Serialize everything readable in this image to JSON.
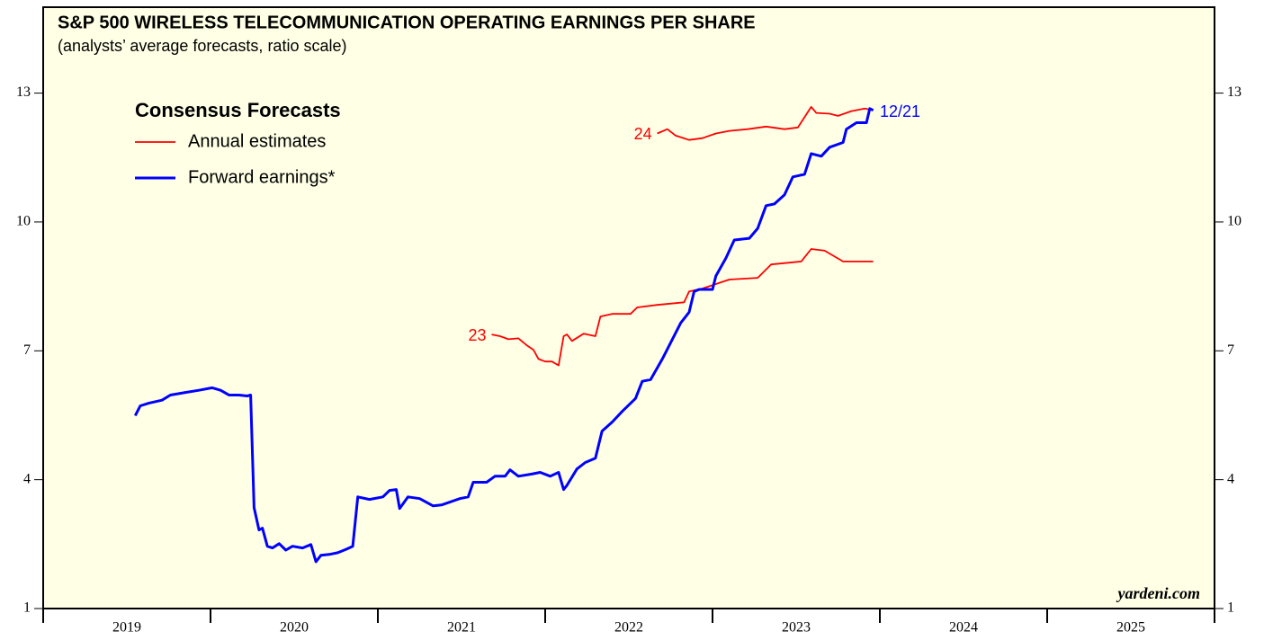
{
  "chart_data": {
    "type": "line",
    "title": "S&P 500 WIRELESS TELECOMMUNICATION OPERATING EARNINGS PER SHARE",
    "subtitle": "(analysts’ average forecasts, ratio scale)",
    "legend_title": "Consensus Forecasts",
    "annotations": {
      "date": "12/21",
      "source": "yardeni.com"
    },
    "xlim": [
      2019,
      2026
    ],
    "xticks": [
      2019,
      2020,
      2021,
      2022,
      2023,
      2024,
      2025,
      2026
    ],
    "ylim": [
      1,
      15
    ],
    "yticks": [
      1,
      4,
      7,
      10,
      13
    ],
    "series": [
      {
        "name": "Annual estimates",
        "label": "23",
        "color": "#ff0000",
        "x": [
          2021.68,
          2021.73,
          2021.78,
          2021.84,
          2021.89,
          2021.93,
          2021.96,
          2022.0,
          2022.04,
          2022.08,
          2022.11,
          2022.13,
          2022.16,
          2022.23,
          2022.3,
          2022.33,
          2022.4,
          2022.51,
          2022.55,
          2022.67,
          2022.83,
          2022.86,
          2022.94,
          2023.1,
          2023.27,
          2023.35,
          2023.53,
          2023.59,
          2023.67,
          2023.78,
          2023.86,
          2023.96
        ],
        "values": [
          7.38,
          7.34,
          7.27,
          7.29,
          7.13,
          7.02,
          6.81,
          6.75,
          6.75,
          6.66,
          7.34,
          7.38,
          7.23,
          7.4,
          7.34,
          7.8,
          7.86,
          7.86,
          8.01,
          8.07,
          8.13,
          8.38,
          8.45,
          8.66,
          8.7,
          9.01,
          9.08,
          9.37,
          9.33,
          9.08,
          9.08,
          9.08
        ]
      },
      {
        "label": "24",
        "color": "#ff0000",
        "x": [
          2022.67,
          2022.73,
          2022.78,
          2022.86,
          2022.94,
          2023.02,
          2023.1,
          2023.21,
          2023.32,
          2023.43,
          2023.51,
          2023.59,
          2023.62,
          2023.7,
          2023.75,
          2023.83,
          2023.91,
          2023.96
        ],
        "values": [
          12.06,
          12.16,
          12.01,
          11.91,
          11.95,
          12.06,
          12.12,
          12.16,
          12.22,
          12.16,
          12.2,
          12.68,
          12.54,
          12.52,
          12.47,
          12.58,
          12.64,
          12.6
        ]
      },
      {
        "name": "Forward earnings*",
        "color": "#0000ff",
        "x": [
          2019.55,
          2019.58,
          2019.63,
          2019.71,
          2019.76,
          2019.85,
          2019.93,
          2020.01,
          2020.06,
          2020.11,
          2020.17,
          2020.22,
          2020.24,
          2020.26,
          2020.29,
          2020.31,
          2020.34,
          2020.37,
          2020.41,
          2020.45,
          2020.49,
          2020.55,
          2020.6,
          2020.63,
          2020.66,
          2020.71,
          2020.76,
          2020.81,
          2020.85,
          2020.88,
          2020.95,
          2021.03,
          2021.07,
          2021.11,
          2021.13,
          2021.18,
          2021.25,
          2021.33,
          2021.38,
          2021.49,
          2021.54,
          2021.57,
          2021.65,
          2021.7,
          2021.76,
          2021.79,
          2021.84,
          2021.92,
          2021.97,
          2022.03,
          2022.08,
          2022.11,
          2022.13,
          2022.19,
          2022.24,
          2022.3,
          2022.34,
          2022.4,
          2022.46,
          2022.54,
          2022.58,
          2022.63,
          2022.7,
          2022.75,
          2022.81,
          2022.86,
          2022.89,
          2022.92,
          2023.0,
          2023.02,
          2023.08,
          2023.13,
          2023.22,
          2023.27,
          2023.32,
          2023.37,
          2023.43,
          2023.48,
          2023.55,
          2023.59,
          2023.65,
          2023.7,
          2023.78,
          2023.8,
          2023.86,
          2023.92,
          2023.94,
          2023.96
        ],
        "values": [
          5.49,
          5.72,
          5.78,
          5.85,
          5.97,
          6.03,
          6.08,
          6.14,
          6.08,
          5.97,
          5.97,
          5.95,
          5.97,
          3.35,
          2.83,
          2.87,
          2.45,
          2.41,
          2.51,
          2.36,
          2.45,
          2.41,
          2.49,
          2.09,
          2.24,
          2.26,
          2.3,
          2.38,
          2.45,
          3.6,
          3.54,
          3.6,
          3.75,
          3.77,
          3.33,
          3.6,
          3.56,
          3.39,
          3.41,
          3.56,
          3.6,
          3.94,
          3.94,
          4.08,
          4.08,
          4.23,
          4.08,
          4.13,
          4.17,
          4.08,
          4.17,
          3.77,
          3.87,
          4.25,
          4.4,
          4.5,
          5.13,
          5.34,
          5.59,
          5.89,
          6.29,
          6.33,
          6.81,
          7.19,
          7.65,
          7.9,
          8.38,
          8.43,
          8.43,
          8.74,
          9.16,
          9.58,
          9.62,
          9.85,
          10.38,
          10.42,
          10.63,
          11.05,
          11.11,
          11.59,
          11.53,
          11.74,
          11.85,
          12.16,
          12.31,
          12.31,
          12.64,
          12.6
        ]
      }
    ]
  }
}
